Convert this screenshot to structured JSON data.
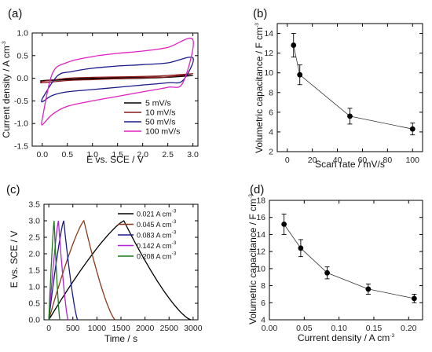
{
  "chart_data": [
    {
      "panel": "(a)",
      "type": "line",
      "xlabel": "E vs. SCE / V",
      "ylabel_main": "Current density / A cm",
      "ylabel_sup": "-3",
      "xlim": [
        -0.2,
        3.1
      ],
      "ylim": [
        -1.5,
        1.0
      ],
      "xticks": [
        "0.0",
        "0.5",
        "1.0",
        "1.5",
        "2.0",
        "2.5",
        "3.0"
      ],
      "yticks": [
        "-1.5",
        "-1.0",
        "-0.5",
        "0.0",
        "0.5",
        "1.0"
      ],
      "legend_position": "bottom-right",
      "series": [
        {
          "name": "5 mV/s",
          "color": "#000000",
          "x": [
            0,
            0.5,
            1.0,
            1.5,
            2.0,
            2.5,
            3.0,
            2.5,
            2.0,
            1.5,
            1.0,
            0.5,
            0.0
          ],
          "y": [
            -0.05,
            -0.02,
            0.0,
            0.01,
            0.02,
            0.03,
            0.06,
            0.02,
            0.0,
            -0.01,
            -0.02,
            -0.03,
            -0.06
          ]
        },
        {
          "name": "10 mV/s",
          "color": "#8B1A1A",
          "x": [
            0,
            0.5,
            1.0,
            1.5,
            2.0,
            2.5,
            3.0,
            2.5,
            2.0,
            1.5,
            1.0,
            0.5,
            0.0
          ],
          "y": [
            -0.07,
            0.0,
            0.02,
            0.03,
            0.04,
            0.06,
            0.1,
            0.03,
            0.01,
            -0.01,
            -0.03,
            -0.05,
            -0.1
          ]
        },
        {
          "name": "50 mV/s",
          "color": "#1A1A8B",
          "x": [
            0,
            0.3,
            0.6,
            1.0,
            1.5,
            2.0,
            2.5,
            3.0,
            2.8,
            2.5,
            2.0,
            1.5,
            1.0,
            0.5,
            0.2,
            0.0
          ],
          "y": [
            -0.45,
            0.05,
            0.15,
            0.22,
            0.27,
            0.3,
            0.34,
            0.45,
            -0.05,
            -0.1,
            -0.15,
            -0.2,
            -0.25,
            -0.3,
            -0.38,
            -0.52
          ]
        },
        {
          "name": "100 mV/s",
          "color": "#E020C0",
          "x": [
            0,
            0.2,
            0.5,
            1.0,
            1.5,
            2.0,
            2.5,
            3.0,
            2.8,
            2.5,
            2.0,
            1.5,
            1.0,
            0.5,
            0.2,
            0.0
          ],
          "y": [
            -0.9,
            0.1,
            0.35,
            0.48,
            0.55,
            0.6,
            0.68,
            0.85,
            -0.1,
            -0.2,
            -0.3,
            -0.4,
            -0.5,
            -0.62,
            -0.8,
            -1.03
          ]
        }
      ]
    },
    {
      "panel": "(b)",
      "type": "scatter",
      "xlabel": "Scan rate / mV/s",
      "ylabel_main": "Volumetric capacitance / F cm",
      "ylabel_sup": "-3",
      "xlim": [
        -8,
        108
      ],
      "ylim": [
        2,
        15
      ],
      "xticks": [
        "0",
        "20",
        "40",
        "60",
        "80",
        "100"
      ],
      "yticks": [
        "2",
        "4",
        "6",
        "8",
        "10",
        "12",
        "14"
      ],
      "x": [
        5,
        10,
        50,
        100
      ],
      "y": [
        12.8,
        9.8,
        5.6,
        4.3
      ],
      "err": [
        1.2,
        1.0,
        0.8,
        0.6
      ]
    },
    {
      "panel": "(c)",
      "type": "line",
      "xlabel": "Time / s",
      "ylabel_main": "E vs. SCE / V",
      "xlim": [
        -100,
        3100
      ],
      "ylim": [
        0,
        3.5
      ],
      "xticks": [
        "0",
        "500",
        "1000",
        "1500",
        "2000",
        "2500",
        "3000"
      ],
      "yticks": [
        "0.0",
        "0.5",
        "1.0",
        "1.5",
        "2.0",
        "2.5",
        "3.0",
        "3.5"
      ],
      "legend_position": "top-right",
      "series": [
        {
          "name_main": "0.021 A cm",
          "name_sup": "-3",
          "color": "#000000",
          "peak": 1560,
          "end": 2950
        },
        {
          "name_main": "0.045 A cm",
          "name_sup": "-3",
          "color": "#8B3A1A",
          "peak": 730,
          "end": 1380
        },
        {
          "name_main": "0.083 A cm",
          "name_sup": "-3",
          "color": "#1A1A8B",
          "peak": 310,
          "end": 600
        },
        {
          "name_main": "0.142 A cm",
          "name_sup": "-3",
          "color": "#B020E0",
          "peak": 200,
          "end": 400
        },
        {
          "name_main": "0.208 A cm",
          "name_sup": "-3",
          "color": "#1A7A1A",
          "peak": 110,
          "end": 230
        }
      ]
    },
    {
      "panel": "(d)",
      "type": "scatter",
      "xlabel_main": "Current density / A cm",
      "xlabel_sup": "-3",
      "ylabel_main": "Volumetric capacitance / F cm",
      "ylabel_sup": "-3",
      "xlim": [
        0,
        0.22
      ],
      "ylim": [
        4,
        18
      ],
      "xticks": [
        "0.00",
        "0.05",
        "0.10",
        "0.15",
        "0.20"
      ],
      "yticks": [
        "4",
        "6",
        "8",
        "10",
        "12",
        "14",
        "16",
        "18"
      ],
      "x": [
        0.021,
        0.045,
        0.083,
        0.142,
        0.208
      ],
      "y": [
        15.2,
        12.4,
        9.5,
        7.6,
        6.5
      ],
      "err": [
        1.2,
        1.0,
        0.7,
        0.6,
        0.5
      ]
    }
  ]
}
